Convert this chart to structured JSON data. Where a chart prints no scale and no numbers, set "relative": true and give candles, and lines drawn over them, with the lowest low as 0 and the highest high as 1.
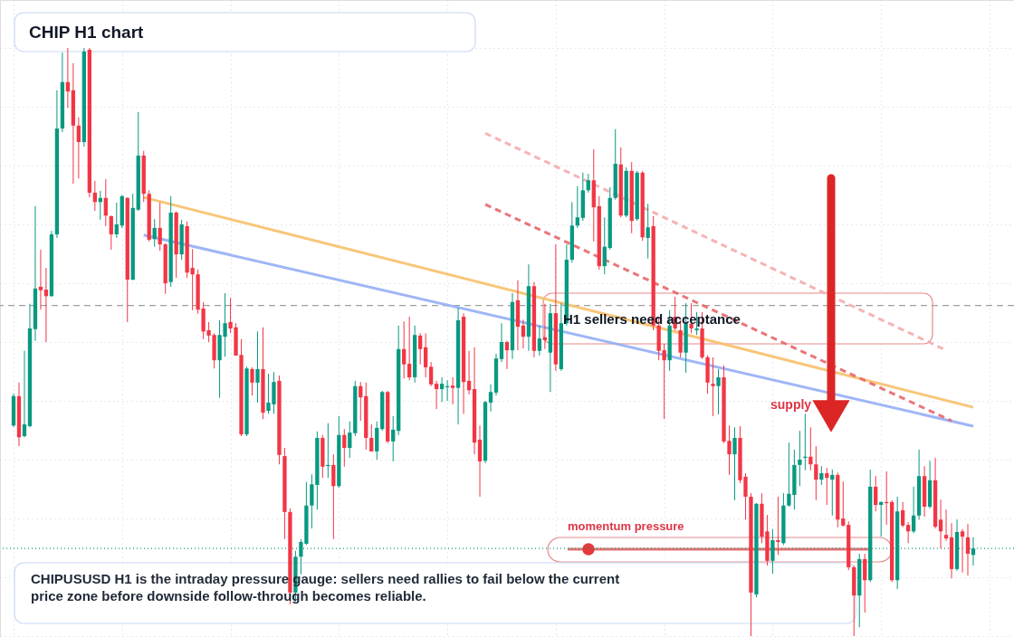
{
  "chart_data": {
    "type": "candlestick",
    "title": "CHIP H1 chart",
    "relative": true,
    "grid": true,
    "categories": [
      null,
      null,
      null,
      null,
      null,
      null,
      null,
      null,
      null,
      null,
      null,
      null,
      null,
      null,
      null,
      null,
      null,
      null,
      null,
      null,
      null,
      null,
      null,
      null,
      null,
      null,
      null,
      null,
      null,
      null,
      null,
      null,
      null,
      null,
      null,
      null,
      null,
      null,
      null,
      null,
      null,
      null,
      null,
      null,
      null,
      null,
      null,
      null,
      null,
      null,
      null,
      null,
      null,
      null,
      null,
      null,
      null,
      null,
      null,
      null,
      null,
      null,
      null,
      null,
      null,
      null,
      null,
      null,
      null,
      null,
      null,
      null,
      null,
      null,
      null,
      null,
      null,
      null,
      null,
      null,
      null,
      null,
      null,
      null,
      null,
      null,
      null,
      null,
      null,
      null,
      null,
      null,
      null,
      null,
      null,
      null,
      null,
      null,
      null,
      null,
      null,
      null,
      null,
      null,
      null,
      null,
      null,
      null,
      null,
      null,
      null,
      null,
      null,
      null,
      null,
      null,
      null,
      null,
      null,
      null,
      null,
      null,
      null,
      null,
      null,
      null,
      null,
      null,
      null,
      null,
      null,
      null,
      null,
      null,
      null,
      null,
      null,
      null,
      null,
      null,
      null,
      null,
      null,
      null,
      null,
      null,
      null,
      null,
      null,
      null,
      null,
      null,
      null,
      null,
      null,
      null,
      null,
      null,
      null,
      null,
      null,
      null,
      null,
      null,
      null,
      null,
      null,
      null,
      null,
      null,
      null,
      null,
      null,
      null,
      null,
      null,
      null,
      null
    ],
    "ohlc": [
      [
        0.358,
        0.412,
        0.355,
        0.408
      ],
      [
        0.408,
        0.431,
        0.323,
        0.338
      ],
      [
        0.34,
        0.485,
        0.338,
        0.36
      ],
      [
        0.357,
        0.565,
        0.355,
        0.523
      ],
      [
        0.522,
        0.731,
        0.502,
        0.591
      ],
      [
        0.594,
        0.657,
        0.555,
        0.588
      ],
      [
        0.589,
        0.626,
        0.5,
        0.578
      ],
      [
        0.578,
        0.689,
        0.577,
        0.683
      ],
      [
        0.683,
        0.928,
        0.677,
        0.863
      ],
      [
        0.863,
        0.992,
        0.857,
        0.942
      ],
      [
        0.942,
        1.0,
        0.898,
        0.926
      ],
      [
        0.928,
        0.974,
        0.769,
        0.868
      ],
      [
        0.868,
        0.882,
        0.778,
        0.84
      ],
      [
        0.84,
        1.0,
        0.832,
        0.994
      ],
      [
        0.997,
        1.0,
        0.746,
        0.754
      ],
      [
        0.754,
        0.774,
        0.723,
        0.738
      ],
      [
        0.738,
        0.757,
        0.708,
        0.745
      ],
      [
        0.745,
        0.777,
        0.697,
        0.715
      ],
      [
        0.714,
        0.715,
        0.657,
        0.683
      ],
      [
        0.683,
        0.737,
        0.677,
        0.7
      ],
      [
        0.698,
        0.75,
        0.694,
        0.748
      ],
      [
        0.745,
        0.746,
        0.534,
        0.606
      ],
      [
        0.606,
        0.752,
        0.605,
        0.728
      ],
      [
        0.725,
        0.891,
        0.723,
        0.817
      ],
      [
        0.817,
        0.825,
        0.738,
        0.752
      ],
      [
        0.752,
        0.758,
        0.671,
        0.674
      ],
      [
        0.675,
        0.709,
        0.662,
        0.694
      ],
      [
        0.694,
        0.737,
        0.655,
        0.666
      ],
      [
        0.666,
        0.668,
        0.582,
        0.6
      ],
      [
        0.602,
        0.748,
        0.594,
        0.72
      ],
      [
        0.72,
        0.722,
        0.609,
        0.649
      ],
      [
        0.649,
        0.708,
        0.64,
        0.7
      ],
      [
        0.697,
        0.705,
        0.609,
        0.618
      ],
      [
        0.626,
        0.658,
        0.554,
        0.615
      ],
      [
        0.615,
        0.623,
        0.548,
        0.555
      ],
      [
        0.557,
        0.568,
        0.505,
        0.518
      ],
      [
        0.52,
        0.534,
        0.5,
        0.511
      ],
      [
        0.512,
        0.515,
        0.455,
        0.469
      ],
      [
        0.469,
        0.537,
        0.405,
        0.512
      ],
      [
        0.509,
        0.583,
        0.475,
        0.532
      ],
      [
        0.534,
        0.575,
        0.515,
        0.523
      ],
      [
        0.525,
        0.532,
        0.477,
        0.477
      ],
      [
        0.478,
        0.505,
        0.34,
        0.343
      ],
      [
        0.343,
        0.458,
        0.34,
        0.455
      ],
      [
        0.454,
        0.457,
        0.409,
        0.431
      ],
      [
        0.431,
        0.518,
        0.397,
        0.454
      ],
      [
        0.454,
        0.525,
        0.369,
        0.38
      ],
      [
        0.383,
        0.446,
        0.378,
        0.397
      ],
      [
        0.394,
        0.449,
        0.378,
        0.432
      ],
      [
        0.434,
        0.443,
        0.292,
        0.308
      ],
      [
        0.306,
        0.32,
        0.165,
        0.211
      ],
      [
        0.211,
        0.217,
        0.054,
        0.074
      ],
      [
        0.074,
        0.145,
        0.058,
        0.135
      ],
      [
        0.135,
        0.165,
        0.105,
        0.16
      ],
      [
        0.157,
        0.262,
        0.155,
        0.222
      ],
      [
        0.222,
        0.275,
        0.183,
        0.258
      ],
      [
        0.257,
        0.348,
        0.215,
        0.337
      ],
      [
        0.337,
        0.342,
        0.269,
        0.288
      ],
      [
        0.289,
        0.362,
        0.269,
        0.291
      ],
      [
        0.291,
        0.309,
        0.165,
        0.255
      ],
      [
        0.255,
        0.374,
        0.252,
        0.342
      ],
      [
        0.342,
        0.352,
        0.288,
        0.32
      ],
      [
        0.32,
        0.365,
        0.303,
        0.346
      ],
      [
        0.345,
        0.434,
        0.34,
        0.425
      ],
      [
        0.425,
        0.432,
        0.366,
        0.406
      ],
      [
        0.408,
        0.431,
        0.317,
        0.337
      ],
      [
        0.337,
        0.36,
        0.314,
        0.314
      ],
      [
        0.314,
        0.365,
        0.3,
        0.354
      ],
      [
        0.352,
        0.417,
        0.349,
        0.415
      ],
      [
        0.415,
        0.417,
        0.328,
        0.331
      ],
      [
        0.331,
        0.374,
        0.297,
        0.351
      ],
      [
        0.349,
        0.528,
        0.342,
        0.488
      ],
      [
        0.488,
        0.535,
        0.438,
        0.462
      ],
      [
        0.463,
        0.543,
        0.435,
        0.44
      ],
      [
        0.44,
        0.528,
        0.431,
        0.512
      ],
      [
        0.511,
        0.515,
        0.462,
        0.488
      ],
      [
        0.491,
        0.515,
        0.44,
        0.457
      ],
      [
        0.458,
        0.466,
        0.425,
        0.428
      ],
      [
        0.429,
        0.434,
        0.386,
        0.42
      ],
      [
        0.42,
        0.44,
        0.398,
        0.429
      ],
      [
        0.423,
        0.435,
        0.4,
        0.425
      ],
      [
        0.426,
        0.44,
        0.394,
        0.422
      ],
      [
        0.422,
        0.558,
        0.36,
        0.537
      ],
      [
        0.543,
        0.549,
        0.378,
        0.432
      ],
      [
        0.434,
        0.485,
        0.411,
        0.418
      ],
      [
        0.42,
        0.491,
        0.309,
        0.329
      ],
      [
        0.334,
        0.358,
        0.237,
        0.297
      ],
      [
        0.298,
        0.4,
        0.294,
        0.398
      ],
      [
        0.397,
        0.428,
        0.382,
        0.415
      ],
      [
        0.414,
        0.48,
        0.409,
        0.472
      ],
      [
        0.471,
        0.532,
        0.466,
        0.5
      ],
      [
        0.5,
        0.502,
        0.454,
        0.486
      ],
      [
        0.486,
        0.583,
        0.471,
        0.568
      ],
      [
        0.571,
        0.605,
        0.486,
        0.526
      ],
      [
        0.528,
        0.538,
        0.489,
        0.509
      ],
      [
        0.509,
        0.632,
        0.485,
        0.595
      ],
      [
        0.595,
        0.602,
        0.474,
        0.485
      ],
      [
        0.485,
        0.528,
        0.477,
        0.506
      ],
      [
        0.508,
        0.565,
        0.488,
        0.503
      ],
      [
        0.482,
        0.565,
        0.415,
        0.549
      ],
      [
        0.549,
        0.666,
        0.451,
        0.462
      ],
      [
        0.454,
        0.566,
        0.451,
        0.532
      ],
      [
        0.532,
        0.666,
        0.528,
        0.64
      ],
      [
        0.64,
        0.738,
        0.635,
        0.698
      ],
      [
        0.698,
        0.765,
        0.694,
        0.712
      ],
      [
        0.711,
        0.788,
        0.706,
        0.758
      ],
      [
        0.758,
        0.786,
        0.754,
        0.775
      ],
      [
        0.775,
        0.828,
        0.671,
        0.729
      ],
      [
        0.731,
        0.748,
        0.623,
        0.629
      ],
      [
        0.629,
        0.712,
        0.615,
        0.662
      ],
      [
        0.66,
        0.763,
        0.657,
        0.745
      ],
      [
        0.745,
        0.862,
        0.742,
        0.803
      ],
      [
        0.802,
        0.831,
        0.712,
        0.715
      ],
      [
        0.715,
        0.797,
        0.712,
        0.791
      ],
      [
        0.791,
        0.806,
        0.685,
        0.706
      ],
      [
        0.709,
        0.791,
        0.706,
        0.788
      ],
      [
        0.788,
        0.791,
        0.672,
        0.678
      ],
      [
        0.677,
        0.735,
        0.642,
        0.695
      ],
      [
        0.697,
        0.714,
        0.52,
        0.528
      ],
      [
        0.528,
        0.543,
        0.469,
        0.485
      ],
      [
        0.486,
        0.497,
        0.369,
        0.469
      ],
      [
        0.469,
        0.554,
        0.451,
        0.528
      ],
      [
        0.543,
        0.577,
        0.52,
        0.523
      ],
      [
        0.52,
        0.538,
        0.474,
        0.482
      ],
      [
        0.482,
        0.566,
        0.448,
        0.531
      ],
      [
        0.531,
        0.566,
        0.515,
        0.523
      ],
      [
        0.52,
        0.551,
        0.512,
        0.523
      ],
      [
        0.523,
        0.551,
        0.471,
        0.474
      ],
      [
        0.474,
        0.477,
        0.412,
        0.431
      ],
      [
        0.429,
        0.474,
        0.374,
        0.425
      ],
      [
        0.425,
        0.454,
        0.377,
        0.44
      ],
      [
        0.44,
        0.46,
        0.328,
        0.331
      ],
      [
        0.332,
        0.358,
        0.274,
        0.309
      ],
      [
        0.309,
        0.355,
        0.231,
        0.337
      ],
      [
        0.337,
        0.357,
        0.26,
        0.265
      ],
      [
        0.271,
        0.277,
        0.198,
        0.237
      ],
      [
        0.237,
        0.243,
        0.0,
        0.074
      ],
      [
        0.071,
        0.226,
        0.066,
        0.225
      ],
      [
        0.225,
        0.243,
        0.158,
        0.169
      ],
      [
        0.178,
        0.206,
        0.12,
        0.128
      ],
      [
        0.128,
        0.182,
        0.106,
        0.163
      ],
      [
        0.163,
        0.237,
        0.138,
        0.16
      ],
      [
        0.158,
        0.243,
        0.155,
        0.222
      ],
      [
        0.222,
        0.329,
        0.22,
        0.242
      ],
      [
        0.24,
        0.317,
        0.215,
        0.291
      ],
      [
        0.291,
        0.349,
        0.255,
        0.3
      ],
      [
        0.303,
        0.378,
        0.282,
        0.305
      ],
      [
        0.305,
        0.355,
        0.282,
        0.292
      ],
      [
        0.292,
        0.323,
        0.231,
        0.266
      ],
      [
        0.266,
        0.289,
        0.257,
        0.277
      ],
      [
        0.277,
        0.286,
        0.223,
        0.269
      ],
      [
        0.266,
        0.283,
        0.205,
        0.274
      ],
      [
        0.274,
        0.278,
        0.185,
        0.198
      ],
      [
        0.2,
        0.263,
        0.186,
        0.188
      ],
      [
        0.189,
        0.195,
        0.112,
        0.117
      ],
      [
        0.117,
        0.12,
        0.0,
        0.069
      ],
      [
        0.069,
        0.14,
        0.015,
        0.131
      ],
      [
        0.131,
        0.14,
        0.04,
        0.095
      ],
      [
        0.095,
        0.283,
        0.092,
        0.254
      ],
      [
        0.254,
        0.272,
        0.212,
        0.223
      ],
      [
        0.223,
        0.229,
        0.169,
        0.228
      ],
      [
        0.228,
        0.28,
        0.189,
        0.226
      ],
      [
        0.228,
        0.231,
        0.092,
        0.095
      ],
      [
        0.095,
        0.237,
        0.08,
        0.212
      ],
      [
        0.214,
        0.228,
        0.185,
        0.188
      ],
      [
        0.189,
        0.194,
        0.158,
        0.178
      ],
      [
        0.178,
        0.254,
        0.175,
        0.205
      ],
      [
        0.205,
        0.317,
        0.198,
        0.272
      ],
      [
        0.272,
        0.289,
        0.203,
        0.22
      ],
      [
        0.22,
        0.298,
        0.217,
        0.265
      ],
      [
        0.265,
        0.303,
        0.183,
        0.186
      ],
      [
        0.198,
        0.232,
        0.149,
        0.178
      ],
      [
        0.172,
        0.215,
        0.162,
        0.166
      ],
      [
        0.168,
        0.192,
        0.098,
        0.114
      ],
      [
        0.114,
        0.198,
        0.111,
        0.177
      ],
      [
        0.178,
        0.182,
        0.108,
        0.169
      ],
      [
        0.168,
        0.191,
        0.103,
        0.14
      ],
      [
        0.138,
        0.168,
        0.12,
        0.149
      ]
    ],
    "series": [
      {
        "type": "line",
        "color": "#f7c06a",
        "line_style": "solid",
        "values": [
          null,
          null,
          null,
          null,
          null,
          null,
          null,
          null,
          null,
          null,
          null,
          null,
          null,
          null,
          null,
          null,
          null,
          null,
          null,
          null,
          null,
          null,
          null,
          null,
          0.746,
          null,
          null,
          null,
          null,
          null,
          null,
          null,
          null,
          null,
          null,
          null,
          null,
          null,
          null,
          null,
          null,
          null,
          null,
          null,
          null,
          null,
          null,
          null,
          null,
          null,
          null,
          null,
          null,
          null,
          null,
          null,
          null,
          null,
          null,
          null,
          null,
          null,
          null,
          null,
          null,
          null,
          null,
          null,
          null,
          null,
          null,
          null,
          null,
          null,
          null,
          null,
          null,
          null,
          null,
          null,
          null,
          null,
          null,
          null,
          null,
          null,
          null,
          null,
          null,
          null,
          null,
          null,
          null,
          null,
          null,
          null,
          null,
          null,
          null,
          null,
          null,
          null,
          null,
          null,
          null,
          null,
          null,
          null,
          null,
          null,
          null,
          null,
          null,
          null,
          null,
          null,
          null,
          null,
          null,
          null,
          null,
          null,
          null,
          null,
          null,
          null,
          null,
          null,
          null,
          null,
          null,
          null,
          null,
          null,
          null,
          null,
          null,
          null,
          null,
          null,
          null,
          null,
          null,
          null,
          null,
          null,
          null,
          null,
          null,
          null,
          null,
          null,
          null,
          null,
          null,
          null,
          null,
          null,
          null,
          null,
          null,
          null,
          null,
          null,
          null,
          null,
          null,
          null,
          null,
          null,
          null,
          null,
          null,
          null,
          null,
          null,
          null,
          0.389
        ]
      },
      {
        "type": "line",
        "color": "#93aef5",
        "line_style": "solid",
        "values": [
          null,
          null,
          null,
          null,
          null,
          null,
          null,
          null,
          null,
          null,
          null,
          null,
          null,
          null,
          null,
          null,
          null,
          null,
          null,
          null,
          null,
          null,
          null,
          null,
          0.682,
          null,
          null,
          null,
          null,
          null,
          null,
          null,
          null,
          null,
          null,
          null,
          null,
          null,
          null,
          null,
          null,
          null,
          null,
          null,
          null,
          null,
          null,
          null,
          null,
          null,
          null,
          null,
          null,
          null,
          null,
          null,
          null,
          null,
          null,
          null,
          null,
          null,
          null,
          null,
          null,
          null,
          null,
          null,
          null,
          null,
          null,
          null,
          null,
          null,
          null,
          null,
          null,
          null,
          null,
          null,
          null,
          null,
          null,
          null,
          null,
          null,
          null,
          null,
          null,
          null,
          null,
          null,
          null,
          null,
          null,
          null,
          null,
          null,
          null,
          null,
          null,
          null,
          null,
          null,
          null,
          null,
          null,
          null,
          null,
          null,
          null,
          null,
          null,
          null,
          null,
          null,
          null,
          null,
          null,
          null,
          null,
          null,
          null,
          null,
          null,
          null,
          null,
          null,
          null,
          null,
          null,
          null,
          null,
          null,
          null,
          null,
          null,
          null,
          null,
          null,
          null,
          null,
          null,
          null,
          null,
          null,
          null,
          null,
          null,
          null,
          null,
          null,
          null,
          null,
          null,
          null,
          null,
          null,
          null,
          null,
          null,
          null,
          null,
          null,
          null,
          null,
          null,
          null,
          null,
          null,
          null,
          null,
          null,
          null,
          null,
          null,
          null,
          0.357
        ]
      },
      {
        "type": "line",
        "color": "#e8666a",
        "line_style": "dashed",
        "values": [
          null,
          null,
          null,
          null,
          null,
          null,
          null,
          null,
          null,
          null,
          null,
          null,
          null,
          null,
          null,
          null,
          null,
          null,
          null,
          null,
          null,
          null,
          null,
          null,
          null,
          null,
          null,
          null,
          null,
          null,
          null,
          null,
          null,
          null,
          null,
          null,
          null,
          null,
          null,
          null,
          null,
          null,
          null,
          null,
          null,
          null,
          null,
          null,
          null,
          null,
          null,
          null,
          null,
          null,
          null,
          null,
          null,
          null,
          null,
          null,
          null,
          null,
          null,
          null,
          null,
          null,
          null,
          null,
          null,
          null,
          null,
          null,
          null,
          null,
          null,
          null,
          null,
          null,
          null,
          null,
          null,
          null,
          null,
          null,
          null,
          null,
          null,
          0.734,
          null,
          null,
          null,
          null,
          null,
          null,
          null,
          null,
          null,
          null,
          null,
          null,
          null,
          null,
          null,
          null,
          null,
          null,
          null,
          null,
          null,
          null,
          null,
          null,
          null,
          null,
          null,
          null,
          null,
          null,
          null,
          null,
          null,
          null,
          null,
          null,
          null,
          null,
          null,
          null,
          null,
          null,
          null,
          null,
          null,
          null,
          null,
          null,
          null,
          null,
          null,
          null,
          null,
          null,
          null,
          null,
          null,
          null,
          null,
          null,
          null,
          null,
          null,
          null,
          null,
          null,
          null,
          null,
          null,
          null,
          null,
          null,
          null,
          null,
          null,
          null,
          null,
          null,
          null,
          null,
          null,
          null,
          null,
          null,
          null,
          0.366,
          null,
          null,
          null,
          null
        ]
      },
      {
        "type": "line",
        "color": "#f4abad",
        "line_style": "dashed",
        "values": [
          null,
          null,
          null,
          null,
          null,
          null,
          null,
          null,
          null,
          null,
          null,
          null,
          null,
          null,
          null,
          null,
          null,
          null,
          null,
          null,
          null,
          null,
          null,
          null,
          null,
          null,
          null,
          null,
          null,
          null,
          null,
          null,
          null,
          null,
          null,
          null,
          null,
          null,
          null,
          null,
          null,
          null,
          null,
          null,
          null,
          null,
          null,
          null,
          null,
          null,
          null,
          null,
          null,
          null,
          null,
          null,
          null,
          null,
          null,
          null,
          null,
          null,
          null,
          null,
          null,
          null,
          null,
          null,
          null,
          null,
          null,
          null,
          null,
          null,
          null,
          null,
          null,
          null,
          null,
          null,
          null,
          null,
          null,
          null,
          null,
          null,
          null,
          0.855,
          null,
          null,
          null,
          null,
          null,
          null,
          null,
          null,
          null,
          null,
          null,
          null,
          null,
          null,
          null,
          null,
          null,
          null,
          null,
          null,
          null,
          null,
          null,
          null,
          null,
          null,
          null,
          null,
          null,
          null,
          null,
          null,
          null,
          null,
          null,
          null,
          null,
          null,
          null,
          null,
          null,
          null,
          null,
          null,
          null,
          null,
          null,
          null,
          null,
          null,
          null,
          null,
          null,
          null,
          null,
          null,
          null,
          null,
          null,
          null,
          null,
          null,
          null,
          null,
          null,
          null,
          null,
          null,
          null,
          null,
          null,
          null,
          null,
          null,
          null,
          null,
          null,
          null,
          null,
          null,
          null,
          null,
          null,
          null,
          0.486,
          null,
          null,
          null,
          null,
          null
        ]
      }
    ],
    "ref_lines": [
      {
        "axis": "y",
        "value": 0.149,
        "color": "#089981",
        "line_style": "dotted"
      },
      {
        "axis": "y",
        "value": 0.562,
        "color": "#9e9e9e",
        "line_style": "dashed"
      }
    ],
    "annotations": [
      "H1 sellers need acceptance",
      "supply",
      "momentum pressure",
      "CHIPUSUSD H1 is the intraday pressure gauge: sellers need rallies to fail below the current price zone before downside follow-through becomes reliable."
    ]
  }
}
